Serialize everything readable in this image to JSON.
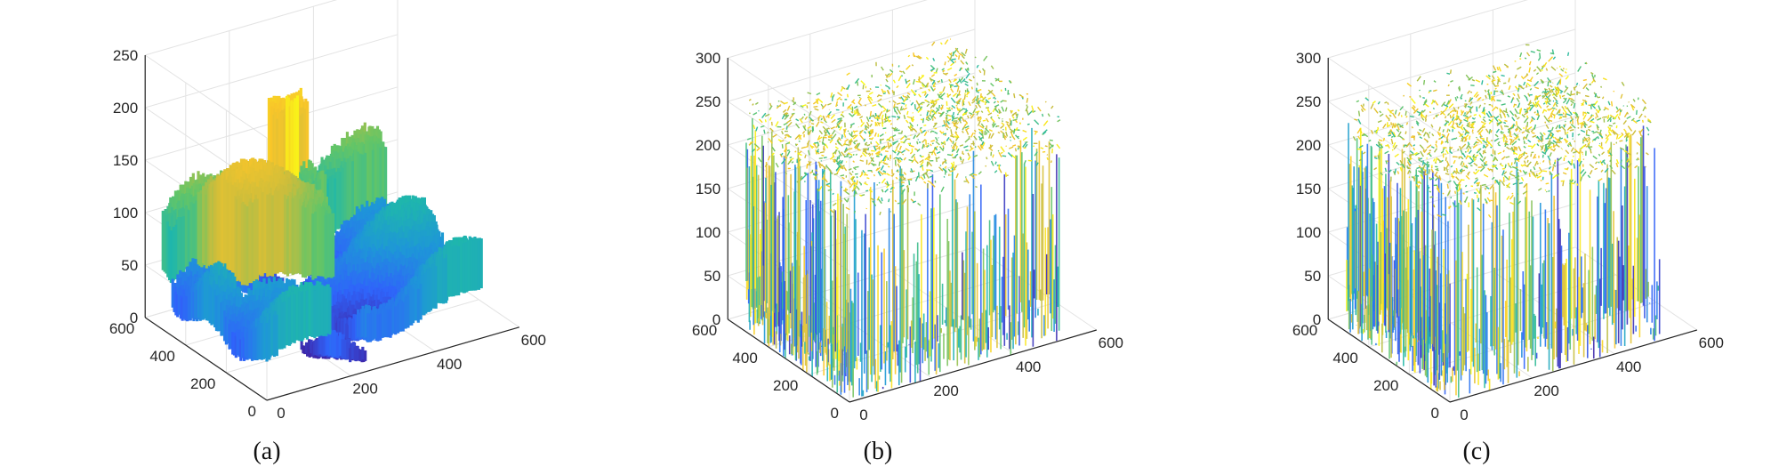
{
  "figure": {
    "panel_labels": [
      "(a)",
      "(b)",
      "(c)"
    ]
  },
  "colors": {
    "colormap": [
      "#3e26a8",
      "#2f64fa",
      "#1e96d8",
      "#1fb7ab",
      "#63c567",
      "#cabd3c",
      "#f8c52a",
      "#f9fb15"
    ],
    "axis": "#262626",
    "grid": "#e3e3e3"
  },
  "chart_data": [
    {
      "type": "surface",
      "panel": "(a)",
      "x_range": [
        0,
        600
      ],
      "y_range": [
        0,
        600
      ],
      "z_range": [
        0,
        250
      ],
      "x_ticks": [
        0,
        200,
        400,
        600
      ],
      "y_ticks": [
        0,
        200,
        400,
        600
      ],
      "z_ticks": [
        0,
        50,
        100,
        150,
        200,
        250
      ],
      "grid": true,
      "surface_extent": {
        "x": [
          0,
          512
        ],
        "y": [
          0,
          512
        ]
      },
      "height_min": 15,
      "height_max": 215,
      "description_of_content": "smooth image intensity surface"
    },
    {
      "type": "surface",
      "panel": "(b)",
      "x_range": [
        0,
        600
      ],
      "y_range": [
        0,
        600
      ],
      "z_range": [
        0,
        300
      ],
      "x_ticks": [
        0,
        200,
        400,
        600
      ],
      "y_ticks": [
        0,
        200,
        400,
        600
      ],
      "z_ticks": [
        0,
        50,
        100,
        150,
        200,
        250,
        300
      ],
      "grid": true,
      "surface_extent": {
        "x": [
          0,
          512
        ],
        "y": [
          0,
          512
        ]
      },
      "height_min": 0,
      "height_max": 255,
      "description_of_content": "noise-like surface"
    },
    {
      "type": "surface",
      "panel": "(c)",
      "x_range": [
        0,
        600
      ],
      "y_range": [
        0,
        600
      ],
      "z_range": [
        0,
        300
      ],
      "x_ticks": [
        0,
        200,
        400,
        600
      ],
      "y_ticks": [
        0,
        200,
        400,
        600
      ],
      "z_ticks": [
        0,
        50,
        100,
        150,
        200,
        250,
        300
      ],
      "grid": true,
      "surface_extent": {
        "x": [
          0,
          512
        ],
        "y": [
          0,
          512
        ]
      },
      "height_min": 0,
      "height_max": 255,
      "description_of_content": "noise-like surface"
    }
  ]
}
